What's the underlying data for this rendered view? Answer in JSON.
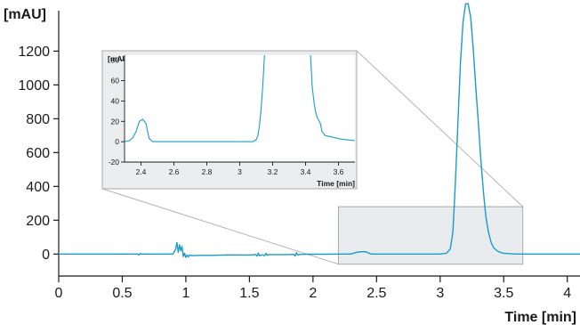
{
  "colors": {
    "trace": "#1a9cc9",
    "axis": "#1a1a1a",
    "zoom_box_fill": "#e9ecee",
    "zoom_box_stroke": "#a9a9a9",
    "connector": "#b3b3b3"
  },
  "chart_data": [
    {
      "type": "line",
      "role": "main",
      "xlabel": "Time [min]",
      "ylabel": "[mAU]",
      "xlim": [
        0,
        4.1
      ],
      "ylim": [
        -130,
        1460
      ],
      "x_ticks": [
        0,
        0.5,
        1,
        1.5,
        2,
        2.5,
        3,
        3.5,
        4
      ],
      "x_tick_labels": [
        "0",
        "0.5",
        "1",
        "1.5",
        "2",
        "2.5",
        "3",
        "3.5",
        "4"
      ],
      "y_ticks": [
        0,
        200,
        400,
        600,
        800,
        1000,
        1200
      ],
      "y_tick_labels": [
        "0",
        "200",
        "400",
        "600",
        "800",
        "1000",
        "1200"
      ],
      "zoom_region": {
        "x": [
          2.2,
          3.65
        ],
        "y": [
          -60,
          280
        ]
      },
      "series": [
        {
          "x": [
            0,
            0.5,
            0.62,
            0.63,
            0.64,
            0.65,
            0.9,
            0.92,
            0.93,
            0.94,
            0.95,
            0.96,
            0.97,
            0.98,
            0.99,
            1.0,
            1.01,
            1.02,
            1.03,
            1.05,
            1.1,
            1.2,
            1.3,
            1.35,
            1.4,
            1.5,
            1.55,
            1.56,
            1.57,
            1.58,
            1.6,
            1.62,
            1.63,
            1.64,
            1.65,
            1.7,
            1.8,
            1.85,
            1.86,
            1.87,
            1.88,
            1.9,
            1.95,
            2.0,
            2.1,
            2.2,
            2.3,
            2.33,
            2.36,
            2.4,
            2.42,
            2.44,
            2.46,
            2.5,
            2.7,
            2.9,
            3.0,
            3.05,
            3.08,
            3.1,
            3.12,
            3.14,
            3.16,
            3.18,
            3.2,
            3.22,
            3.24,
            3.26,
            3.28,
            3.3,
            3.32,
            3.34,
            3.36,
            3.38,
            3.4,
            3.42,
            3.45,
            3.48,
            3.5,
            3.55,
            3.6,
            3.7,
            3.8,
            4.1
          ],
          "y": [
            0,
            0,
            0,
            -5,
            3,
            0,
            0,
            30,
            68,
            10,
            55,
            20,
            45,
            -15,
            5,
            -20,
            -5,
            -18,
            -5,
            -10,
            -8,
            -8,
            -6,
            -5,
            -5,
            -6,
            -3,
            -12,
            6,
            -10,
            -4,
            -10,
            4,
            -8,
            -3,
            -3,
            -3,
            -2,
            -12,
            8,
            -6,
            -2,
            -1,
            -1,
            -1,
            0,
            0,
            8,
            12,
            14,
            12,
            5,
            0,
            0,
            0,
            0,
            0,
            5,
            30,
            130,
            420,
            780,
            1130,
            1370,
            1480,
            1480,
            1400,
            1220,
            990,
            780,
            560,
            370,
            220,
            130,
            70,
            38,
            18,
            8,
            5,
            2,
            0,
            0,
            0,
            0
          ]
        }
      ]
    },
    {
      "type": "line",
      "role": "inset",
      "xlabel": "Time [min]",
      "ylabel": "[mAU]",
      "xlim": [
        2.3,
        3.7
      ],
      "ylim": [
        -20,
        85
      ],
      "x_ticks": [
        2.4,
        2.6,
        2.8,
        3,
        3.2,
        3.4,
        3.6
      ],
      "x_tick_labels": [
        "2.4",
        "2.6",
        "2.8",
        "3",
        "3.2",
        "3.4",
        "3.6"
      ],
      "y_ticks": [
        -20,
        0,
        20,
        40,
        60,
        80
      ],
      "y_tick_labels": [
        "-20",
        "0",
        "20",
        "40",
        "60",
        "80"
      ],
      "series": [
        {
          "x": [
            2.3,
            2.33,
            2.35,
            2.37,
            2.39,
            2.41,
            2.43,
            2.44,
            2.45,
            2.47,
            2.5,
            2.6,
            2.8,
            3.0,
            3.05,
            3.08,
            3.1,
            3.11,
            3.12,
            3.13,
            3.14,
            3.15
          ],
          "y": [
            0,
            1,
            4,
            10,
            20,
            22,
            18,
            10,
            3,
            0,
            0,
            0,
            0,
            0,
            0,
            0,
            2,
            6,
            16,
            32,
            55,
            85
          ]
        },
        {
          "x": [
            3.43,
            3.44,
            3.45,
            3.46,
            3.47,
            3.49,
            3.5,
            3.52,
            3.55,
            3.6,
            3.65,
            3.7
          ],
          "y": [
            85,
            55,
            40,
            30,
            24,
            18,
            10,
            6,
            5,
            3,
            2,
            1
          ]
        }
      ]
    }
  ]
}
